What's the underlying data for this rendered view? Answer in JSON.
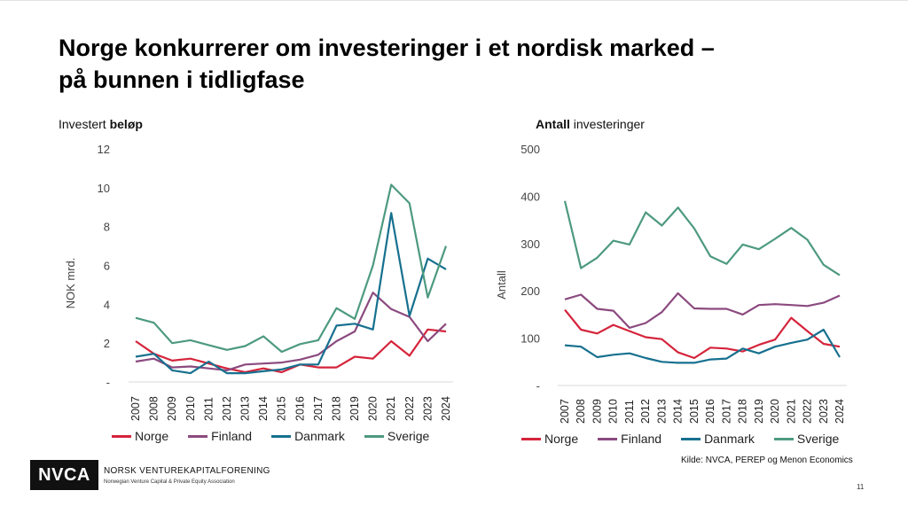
{
  "slide": {
    "title_line1": "Norge konkurrerer om investeringer i et nordisk marked –",
    "title_line2": "på bunnen i tidligfase",
    "source": "Kilde: NVCA, PEREP og Menon Economics",
    "page_number": "11"
  },
  "logo": {
    "mark": "NVCA",
    "org_name": "NORSK VENTUREKAPITALFORENING",
    "org_subtitle": "Norwegian Venture Capital & Private Equity Association"
  },
  "colors": {
    "Norge": "#d5243b",
    "Finland": "#8b4a7f",
    "Danmark": "#17708f",
    "Sverige": "#4d9a7f",
    "grid": "#d9d9d9",
    "axis_text": "#444444"
  },
  "chart_data": [
    {
      "type": "line",
      "title_prefix": "Investert ",
      "title_bold": "beløp",
      "ylabel": "NOK mrd.",
      "xlabel": "",
      "ylim": [
        0,
        12
      ],
      "yticks": [
        "-",
        "2",
        "4",
        "6",
        "8",
        "10",
        "12"
      ],
      "grid": false,
      "legend": "bottom",
      "categories": [
        "2007",
        "2008",
        "2009",
        "2010",
        "2011",
        "2012",
        "2013",
        "2014",
        "2015",
        "2016",
        "2017",
        "2018",
        "2019",
        "2020",
        "2021",
        "2022",
        "2023",
        "2024"
      ],
      "series": [
        {
          "name": "Norge",
          "values": [
            2.1,
            1.45,
            1.1,
            1.2,
            0.95,
            0.7,
            0.5,
            0.7,
            0.5,
            0.9,
            0.75,
            0.75,
            1.3,
            1.2,
            2.1,
            1.35,
            2.7,
            2.6
          ]
        },
        {
          "name": "Finland",
          "values": [
            1.05,
            1.2,
            0.75,
            0.8,
            0.7,
            0.6,
            0.9,
            0.95,
            1.0,
            1.15,
            1.4,
            2.1,
            2.6,
            4.6,
            3.75,
            3.35,
            2.1,
            3.0
          ]
        },
        {
          "name": "Danmark",
          "values": [
            1.3,
            1.45,
            0.6,
            0.45,
            1.05,
            0.45,
            0.45,
            0.55,
            0.65,
            0.9,
            0.9,
            2.9,
            3.0,
            2.7,
            8.7,
            3.4,
            6.35,
            5.8
          ]
        },
        {
          "name": "Sverige",
          "values": [
            3.3,
            3.05,
            2.0,
            2.15,
            1.9,
            1.65,
            1.85,
            2.35,
            1.55,
            1.95,
            2.15,
            3.8,
            3.25,
            6.0,
            10.15,
            9.2,
            4.35,
            7.0
          ]
        }
      ]
    },
    {
      "type": "line",
      "title_prefix_bold": "Antall",
      "title_suffix": " investeringer",
      "ylabel": "Antall",
      "xlabel": "",
      "ylim": [
        0,
        500
      ],
      "yticks": [
        "-",
        "100",
        "200",
        "300",
        "400",
        "500"
      ],
      "grid": false,
      "legend": "bottom",
      "categories": [
        "2007",
        "2008",
        "2009",
        "2010",
        "2011",
        "2012",
        "2013",
        "2014",
        "2015",
        "2016",
        "2017",
        "2018",
        "2019",
        "2020",
        "2021",
        "2022",
        "2023",
        "2024"
      ],
      "series": [
        {
          "name": "Norge",
          "values": [
            160,
            118,
            110,
            128,
            115,
            102,
            98,
            70,
            58,
            80,
            78,
            72,
            86,
            97,
            143,
            115,
            88,
            82
          ]
        },
        {
          "name": "Finland",
          "values": [
            182,
            192,
            162,
            158,
            122,
            132,
            155,
            195,
            163,
            162,
            162,
            150,
            170,
            172,
            170,
            168,
            175,
            190
          ]
        },
        {
          "name": "Danmark",
          "values": [
            85,
            82,
            60,
            65,
            68,
            58,
            50,
            48,
            48,
            55,
            57,
            78,
            68,
            82,
            90,
            97,
            118,
            60
          ]
        },
        {
          "name": "Sverige",
          "values": [
            390,
            248,
            270,
            306,
            298,
            366,
            338,
            376,
            332,
            273,
            257,
            298,
            288,
            310,
            333,
            308,
            255,
            233
          ]
        }
      ]
    }
  ]
}
